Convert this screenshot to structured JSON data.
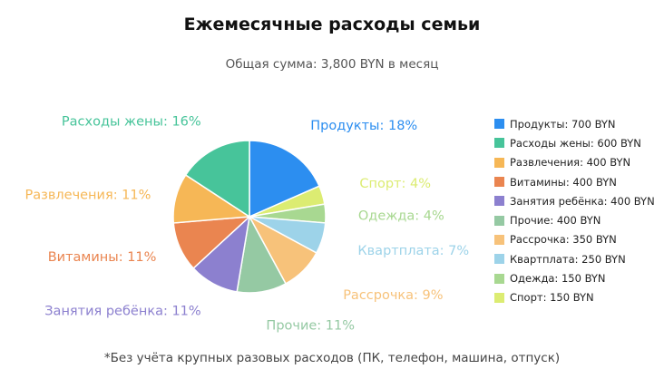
{
  "chart_data": {
    "type": "pie",
    "title": "Ежемесячные расходы семьи",
    "subtitle": "Общая сумма: 3,800 BYN в месяц",
    "footnote": "*Без учёта крупных разовых расходов (ПК, телефон, машина, отпуск)",
    "unit": "BYN",
    "slices": [
      {
        "label": "Продукты",
        "value": 700,
        "percent_label": "Продукты: 18%",
        "legend_label": "Продукты: 700 BYN",
        "color": "#2c8ef0"
      },
      {
        "label": "Спорт",
        "value": 150,
        "percent_label": "Спорт: 4%",
        "legend_label": "Спорт: 150 BYN",
        "color": "#dcec72"
      },
      {
        "label": "Одежда",
        "value": 150,
        "percent_label": "Одежда: 4%",
        "legend_label": "Одежда: 150 BYN",
        "color": "#a8d891"
      },
      {
        "label": "Квартплата",
        "value": 250,
        "percent_label": "Квартплата: 7%",
        "legend_label": "Квартплата: 250 BYN",
        "color": "#9dd3e9"
      },
      {
        "label": "Рассрочка",
        "value": 350,
        "percent_label": "Рассрочка: 9%",
        "legend_label": "Рассрочка: 350 BYN",
        "color": "#f7c27a"
      },
      {
        "label": "Прочие",
        "value": 400,
        "percent_label": "Прочие: 11%",
        "legend_label": "Прочие: 400 BYN",
        "color": "#95c9a3"
      },
      {
        "label": "Занятия ребёнка",
        "value": 400,
        "percent_label": "Занятия ребёнка: 11%",
        "legend_label": "Занятия ребёнка: 400 BYN",
        "color": "#8c80cf"
      },
      {
        "label": "Витамины",
        "value": 400,
        "percent_label": "Витамины: 11%",
        "legend_label": "Витамины: 400 BYN",
        "color": "#ea8550"
      },
      {
        "label": "Развлечения",
        "value": 400,
        "percent_label": "Развлечения: 11%",
        "legend_label": "Развлечения: 400 BYN",
        "color": "#f6b756"
      },
      {
        "label": "Расходы жены",
        "value": 600,
        "percent_label": "Расходы жены: 16%",
        "legend_label": "Расходы жены: 600 BYN",
        "color": "#47c49a"
      }
    ],
    "legend_order": [
      "Продукты",
      "Расходы жены",
      "Развлечения",
      "Витамины",
      "Занятия ребёнка",
      "Прочие",
      "Рассрочка",
      "Квартплата",
      "Одежда",
      "Спорт"
    ],
    "legend_position": "right",
    "start_angle_deg": 0,
    "direction": "clockwise"
  }
}
